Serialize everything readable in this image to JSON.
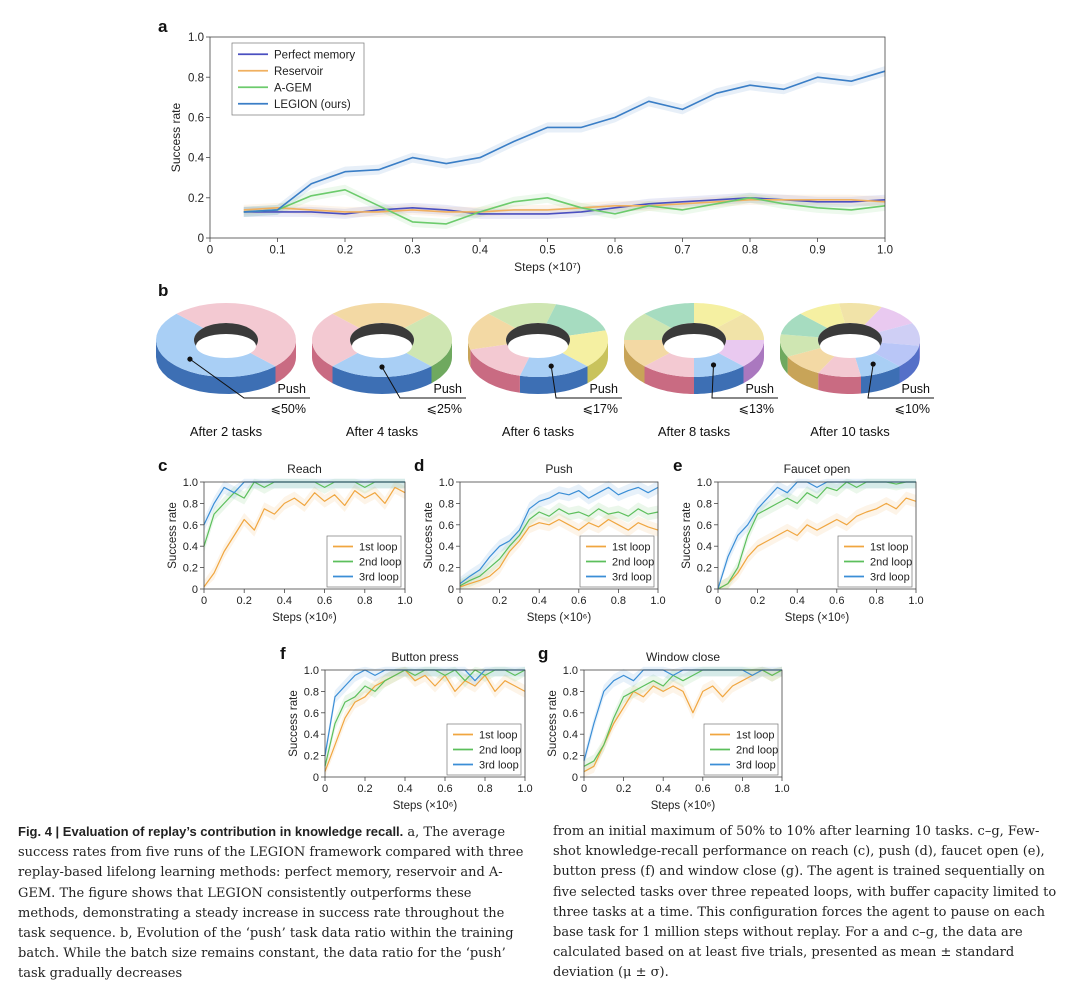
{
  "panel_letters": [
    "a",
    "b",
    "c",
    "d",
    "e",
    "f",
    "g"
  ],
  "chart_data": [
    {
      "id": "a",
      "type": "line",
      "title": "",
      "xlabel": "Steps (×10⁷)",
      "ylabel": "Success rate",
      "xlim": [
        0,
        1.0
      ],
      "ylim": [
        0,
        1.0
      ],
      "xticks": [
        "0",
        "0.1",
        "0.2",
        "0.3",
        "0.4",
        "0.5",
        "0.6",
        "0.7",
        "0.8",
        "0.9",
        "1.0"
      ],
      "yticks": [
        "0",
        "0.2",
        "0.4",
        "0.6",
        "0.8",
        "1.0"
      ],
      "grid": false,
      "legend": "top-left",
      "x": [
        0.05,
        0.1,
        0.15,
        0.2,
        0.25,
        0.3,
        0.35,
        0.4,
        0.45,
        0.5,
        0.55,
        0.6,
        0.65,
        0.7,
        0.75,
        0.8,
        0.85,
        0.9,
        0.95,
        1.0
      ],
      "series": [
        {
          "name": "Perfect memory",
          "color": "#4a4fc0",
          "values": [
            0.13,
            0.13,
            0.13,
            0.12,
            0.14,
            0.15,
            0.14,
            0.12,
            0.12,
            0.12,
            0.13,
            0.15,
            0.17,
            0.18,
            0.19,
            0.2,
            0.19,
            0.18,
            0.18,
            0.19
          ]
        },
        {
          "name": "Reservoir",
          "color": "#f0b060",
          "values": [
            0.14,
            0.15,
            0.14,
            0.13,
            0.13,
            0.14,
            0.13,
            0.13,
            0.14,
            0.14,
            0.15,
            0.16,
            0.16,
            0.17,
            0.18,
            0.19,
            0.19,
            0.19,
            0.19,
            0.18
          ]
        },
        {
          "name": "A-GEM",
          "color": "#6ccb6c",
          "values": [
            0.13,
            0.14,
            0.21,
            0.24,
            0.16,
            0.08,
            0.07,
            0.13,
            0.18,
            0.2,
            0.15,
            0.12,
            0.16,
            0.14,
            0.17,
            0.2,
            0.17,
            0.15,
            0.14,
            0.16
          ]
        },
        {
          "name": "LEGION (ours)",
          "color": "#3a7ec6",
          "values": [
            0.13,
            0.14,
            0.27,
            0.33,
            0.34,
            0.4,
            0.37,
            0.4,
            0.48,
            0.55,
            0.55,
            0.6,
            0.68,
            0.64,
            0.72,
            0.76,
            0.74,
            0.8,
            0.78,
            0.83
          ]
        }
      ]
    },
    {
      "id": "c",
      "type": "line",
      "title": "Reach",
      "xlabel": "Steps (×10⁶)",
      "ylabel": "Success rate",
      "xlim": [
        0,
        1.0
      ],
      "ylim": [
        0,
        1.0
      ],
      "xticks": [
        "0",
        "0.2",
        "0.4",
        "0.6",
        "0.8",
        "1.0"
      ],
      "yticks": [
        "0",
        "0.2",
        "0.4",
        "0.6",
        "0.8",
        "1.0"
      ],
      "legend": "bottom-right",
      "x": [
        0,
        0.05,
        0.1,
        0.15,
        0.2,
        0.25,
        0.3,
        0.35,
        0.4,
        0.45,
        0.5,
        0.55,
        0.6,
        0.65,
        0.7,
        0.75,
        0.8,
        0.85,
        0.9,
        0.95,
        1.0
      ],
      "series": [
        {
          "name": "1st loop",
          "color": "#f0a640",
          "values": [
            0.02,
            0.15,
            0.35,
            0.5,
            0.65,
            0.55,
            0.75,
            0.7,
            0.8,
            0.85,
            0.78,
            0.9,
            0.82,
            0.88,
            0.78,
            0.92,
            0.85,
            0.9,
            0.8,
            0.95,
            0.9
          ]
        },
        {
          "name": "2nd loop",
          "color": "#5cbf5c",
          "values": [
            0.4,
            0.7,
            0.8,
            0.9,
            0.85,
            1.0,
            0.95,
            1.0,
            1.0,
            1.0,
            1.0,
            1.0,
            0.95,
            1.0,
            1.0,
            1.0,
            0.95,
            1.0,
            1.0,
            1.0,
            1.0
          ]
        },
        {
          "name": "3rd loop",
          "color": "#3a8ed6",
          "values": [
            0.6,
            0.8,
            0.95,
            0.9,
            1.0,
            1.0,
            1.0,
            1.0,
            1.0,
            1.0,
            1.0,
            1.0,
            1.0,
            1.0,
            1.0,
            1.0,
            1.0,
            1.0,
            1.0,
            1.0,
            1.0
          ]
        }
      ]
    },
    {
      "id": "d",
      "type": "line",
      "title": "Push",
      "xlabel": "Steps (×10⁶)",
      "ylabel": "Success rate",
      "xlim": [
        0,
        1.0
      ],
      "ylim": [
        0,
        1.0
      ],
      "xticks": [
        "0",
        "0.2",
        "0.4",
        "0.6",
        "0.8",
        "1.0"
      ],
      "yticks": [
        "0",
        "0.2",
        "0.4",
        "0.6",
        "0.8",
        "1.0"
      ],
      "legend": "bottom-right",
      "x": [
        0,
        0.05,
        0.1,
        0.15,
        0.2,
        0.25,
        0.3,
        0.35,
        0.4,
        0.45,
        0.5,
        0.55,
        0.6,
        0.65,
        0.7,
        0.75,
        0.8,
        0.85,
        0.9,
        0.95,
        1.0
      ],
      "series": [
        {
          "name": "1st loop",
          "color": "#f0a640",
          "values": [
            0.02,
            0.05,
            0.08,
            0.12,
            0.2,
            0.35,
            0.45,
            0.58,
            0.62,
            0.6,
            0.65,
            0.6,
            0.55,
            0.62,
            0.58,
            0.65,
            0.6,
            0.55,
            0.62,
            0.58,
            0.55
          ]
        },
        {
          "name": "2nd loop",
          "color": "#5cbf5c",
          "values": [
            0.03,
            0.08,
            0.12,
            0.2,
            0.28,
            0.4,
            0.5,
            0.65,
            0.72,
            0.68,
            0.75,
            0.7,
            0.72,
            0.68,
            0.75,
            0.7,
            0.72,
            0.68,
            0.75,
            0.7,
            0.72
          ]
        },
        {
          "name": "3rd loop",
          "color": "#3a8ed6",
          "values": [
            0.05,
            0.12,
            0.18,
            0.3,
            0.4,
            0.45,
            0.55,
            0.75,
            0.82,
            0.85,
            0.9,
            0.88,
            0.92,
            0.85,
            0.9,
            0.95,
            0.88,
            0.92,
            0.95,
            0.9,
            0.95
          ]
        }
      ]
    },
    {
      "id": "e",
      "type": "line",
      "title": "Faucet open",
      "xlabel": "Steps (×10⁶)",
      "ylabel": "Success rate",
      "xlim": [
        0,
        1.0
      ],
      "ylim": [
        0,
        1.0
      ],
      "xticks": [
        "0",
        "0.2",
        "0.4",
        "0.6",
        "0.8",
        "1.0"
      ],
      "yticks": [
        "0",
        "0.2",
        "0.4",
        "0.6",
        "0.8",
        "1.0"
      ],
      "legend": "bottom-right",
      "x": [
        0,
        0.05,
        0.1,
        0.15,
        0.2,
        0.25,
        0.3,
        0.35,
        0.4,
        0.45,
        0.5,
        0.55,
        0.6,
        0.65,
        0.7,
        0.75,
        0.8,
        0.85,
        0.9,
        0.95,
        1.0
      ],
      "series": [
        {
          "name": "1st loop",
          "color": "#f0a640",
          "values": [
            0,
            0.05,
            0.15,
            0.3,
            0.4,
            0.45,
            0.5,
            0.55,
            0.5,
            0.6,
            0.55,
            0.6,
            0.65,
            0.6,
            0.68,
            0.72,
            0.75,
            0.8,
            0.75,
            0.85,
            0.82
          ]
        },
        {
          "name": "2nd loop",
          "color": "#5cbf5c",
          "values": [
            0,
            0.05,
            0.2,
            0.5,
            0.7,
            0.75,
            0.8,
            0.85,
            0.8,
            0.9,
            0.85,
            0.95,
            0.92,
            1.0,
            0.95,
            1.0,
            1.0,
            1.0,
            0.98,
            1.0,
            1.0
          ]
        },
        {
          "name": "3rd loop",
          "color": "#3a8ed6",
          "values": [
            0,
            0.3,
            0.5,
            0.6,
            0.75,
            0.85,
            0.95,
            0.9,
            1.0,
            1.0,
            0.95,
            1.0,
            1.0,
            1.0,
            1.0,
            1.0,
            1.0,
            1.0,
            1.0,
            1.0,
            1.0
          ]
        }
      ]
    },
    {
      "id": "f",
      "type": "line",
      "title": "Button press",
      "xlabel": "Steps (×10⁶)",
      "ylabel": "Success rate",
      "xlim": [
        0,
        1.0
      ],
      "ylim": [
        0,
        1.0
      ],
      "xticks": [
        "0",
        "0.2",
        "0.4",
        "0.6",
        "0.8",
        "1.0"
      ],
      "yticks": [
        "0",
        "0.2",
        "0.4",
        "0.6",
        "0.8",
        "1.0"
      ],
      "legend": "bottom-right",
      "x": [
        0,
        0.05,
        0.1,
        0.15,
        0.2,
        0.25,
        0.3,
        0.35,
        0.4,
        0.45,
        0.5,
        0.55,
        0.6,
        0.65,
        0.7,
        0.75,
        0.8,
        0.85,
        0.9,
        0.95,
        1.0
      ],
      "series": [
        {
          "name": "1st loop",
          "color": "#f0a640",
          "values": [
            0.05,
            0.3,
            0.55,
            0.7,
            0.75,
            0.85,
            0.9,
            0.95,
            1.0,
            0.9,
            0.95,
            0.85,
            0.95,
            0.8,
            0.9,
            0.85,
            0.95,
            0.8,
            0.9,
            0.85,
            0.8
          ]
        },
        {
          "name": "2nd loop",
          "color": "#5cbf5c",
          "values": [
            0.1,
            0.5,
            0.7,
            0.75,
            0.85,
            0.8,
            0.9,
            0.95,
            1.0,
            0.95,
            1.0,
            1.0,
            0.95,
            1.0,
            0.9,
            1.0,
            0.95,
            1.0,
            1.0,
            0.95,
            1.0
          ]
        },
        {
          "name": "3rd loop",
          "color": "#3a8ed6",
          "values": [
            0.2,
            0.75,
            0.85,
            0.95,
            1.0,
            0.95,
            1.0,
            1.0,
            1.0,
            1.0,
            1.0,
            1.0,
            1.0,
            1.0,
            1.0,
            0.9,
            1.0,
            1.0,
            1.0,
            1.0,
            1.0
          ]
        }
      ]
    },
    {
      "id": "g",
      "type": "line",
      "title": "Window close",
      "xlabel": "Steps (×10⁶)",
      "ylabel": "Success rate",
      "xlim": [
        0,
        1.0
      ],
      "ylim": [
        0,
        1.0
      ],
      "xticks": [
        "0",
        "0.2",
        "0.4",
        "0.6",
        "0.8",
        "1.0"
      ],
      "yticks": [
        "0",
        "0.2",
        "0.4",
        "0.6",
        "0.8",
        "1.0"
      ],
      "legend": "bottom-right",
      "x": [
        0,
        0.05,
        0.1,
        0.15,
        0.2,
        0.25,
        0.3,
        0.35,
        0.4,
        0.45,
        0.5,
        0.55,
        0.6,
        0.65,
        0.7,
        0.75,
        0.8,
        0.85,
        0.9,
        0.95,
        1.0
      ],
      "series": [
        {
          "name": "1st loop",
          "color": "#f0a640",
          "values": [
            0.05,
            0.1,
            0.3,
            0.5,
            0.65,
            0.8,
            0.75,
            0.85,
            0.8,
            0.85,
            0.8,
            0.6,
            0.8,
            0.85,
            0.75,
            0.85,
            0.9,
            0.95,
            1.0,
            0.95,
            1.0
          ]
        },
        {
          "name": "2nd loop",
          "color": "#5cbf5c",
          "values": [
            0.1,
            0.15,
            0.3,
            0.55,
            0.75,
            0.8,
            0.85,
            0.9,
            0.85,
            0.95,
            0.9,
            0.95,
            1.0,
            1.0,
            1.0,
            1.0,
            1.0,
            1.0,
            1.0,
            0.95,
            1.0
          ]
        },
        {
          "name": "3rd loop",
          "color": "#3a8ed6",
          "values": [
            0.15,
            0.5,
            0.8,
            0.9,
            0.95,
            0.9,
            1.0,
            1.0,
            1.0,
            0.95,
            1.0,
            1.0,
            1.0,
            1.0,
            1.0,
            1.0,
            1.0,
            0.95,
            1.0,
            1.0,
            1.0
          ]
        }
      ]
    }
  ],
  "donuts": {
    "push_label": "Push",
    "colors_top": [
      "#f3c9d2",
      "#f3d9a4",
      "#cfe6b2",
      "#a6dcc0",
      "#f5f0a2",
      "#f1e3a8",
      "#e9c9f0",
      "#cfcff5",
      "#b9c6f7",
      "#c6e4b7"
    ],
    "colors_side": [
      "#c96b82",
      "#c8a458",
      "#6fa95f",
      "#4f9d76",
      "#c9c35c",
      "#c3aa58",
      "#aa78bf",
      "#7d7dcf",
      "#5570c8",
      "#6fae5e"
    ],
    "push_top": "#a9cff5",
    "push_side": "#3d6fb4",
    "items": [
      {
        "caption": "After 2 tasks",
        "ratio": "⩽50%",
        "n": 2
      },
      {
        "caption": "After 4 tasks",
        "ratio": "⩽25%",
        "n": 4
      },
      {
        "caption": "After 6 tasks",
        "ratio": "⩽17%",
        "n": 6
      },
      {
        "caption": "After 8 tasks",
        "ratio": "⩽13%",
        "n": 8
      },
      {
        "caption": "After 10 tasks",
        "ratio": "⩽10%",
        "n": 10
      }
    ]
  },
  "caption": {
    "fig_label": "Fig. 4 | Evaluation of replay’s contribution in knowledge recall.",
    "left_text": " a, The average success rates from five runs of the LEGION framework compared with three replay-based lifelong learning methods: perfect memory, reservoir and A-GEM. The figure shows that LEGION consistently outperforms these methods, demonstrating a steady increase in success rate throughout the task sequence. b, Evolution of the ‘push’ task data ratio within the training batch. While the batch size remains constant, the data ratio for the ‘push’ task gradually decreases",
    "right_text": "from an initial maximum of 50% to 10% after learning 10 tasks. c–g, Few-shot knowledge-recall performance on reach (c), push (d), faucet open (e), button press (f) and window close (g). The agent is trained sequentially on five selected tasks over three repeated loops, with buffer capacity limited to three tasks at a time. This configuration forces the agent to pause on each base task for 1 million steps without replay. For a and c–g, the data are calculated based on at least five trials, presented as mean ± standard deviation (μ ± σ)."
  }
}
